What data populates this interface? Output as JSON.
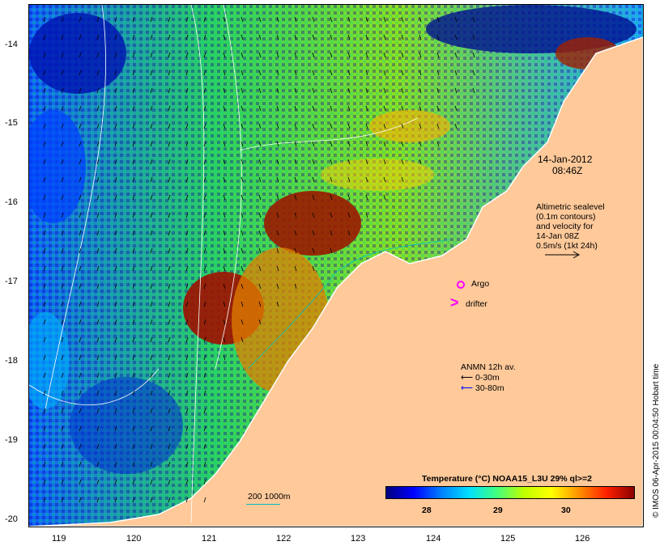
{
  "date": "14-Jan-2012",
  "time": "08:46Z",
  "altimetry_note": [
    "Altimetric sealevel",
    "(0.1m contours)",
    "and velocity for",
    "14-Jan 08Z",
    "0.5m/s (1kt 24h)"
  ],
  "argo_label": "Argo",
  "drifter_label": "drifter",
  "anmn_title": "ANMN 12h av.",
  "anmn_items": [
    {
      "label": "0-30m",
      "color": "#000000"
    },
    {
      "label": "30-80m",
      "color": "#0000ff"
    }
  ],
  "depth_label": "200 1000m",
  "colorbar": {
    "title": "Temperature (°C) NOAA15_L3U 29% ql>=2",
    "ticks": [
      "28",
      "29",
      "30"
    ],
    "stops": [
      "#00007f",
      "#0000ff",
      "#0080ff",
      "#00e0ff",
      "#40ff80",
      "#c0ff00",
      "#ffff00",
      "#ff9000",
      "#ff2000",
      "#8b0000"
    ]
  },
  "x_ticks": [
    "119",
    "120",
    "121",
    "122",
    "123",
    "124",
    "125",
    "126"
  ],
  "y_ticks": [
    "-14",
    "-15",
    "-16",
    "-17",
    "-18",
    "-19",
    "-20"
  ],
  "credit": "© IMOS 06-Apr-2015 00:04:50 Hobart time",
  "colors": {
    "land": "#ffc99a",
    "argo": "#ff00ff",
    "drifter": "#ff00ff"
  }
}
